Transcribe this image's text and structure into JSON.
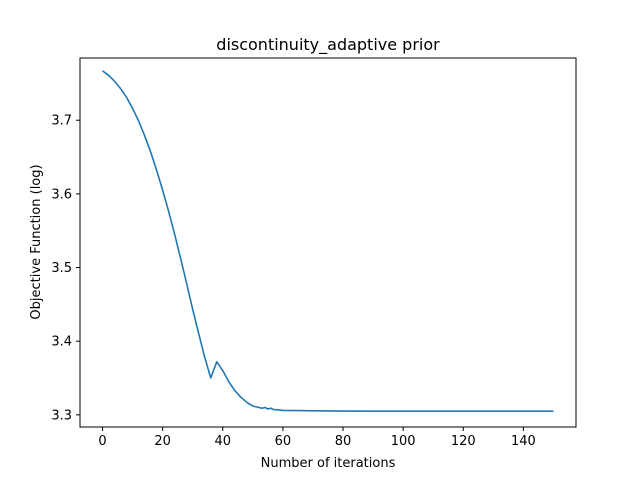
{
  "chart_data": {
    "type": "line",
    "title": "discontinuity_adaptive prior",
    "xlabel": "Number of iterations",
    "ylabel": "Objective Function (log)",
    "xlim": [
      -7.5,
      157.5
    ],
    "ylim": [
      3.2835,
      3.7845
    ],
    "x_ticks": [
      "0",
      "20",
      "40",
      "60",
      "80",
      "100",
      "120",
      "140"
    ],
    "y_ticks": [
      "3.3",
      "3.4",
      "3.5",
      "3.6",
      "3.7"
    ],
    "grid": false,
    "legend": "none",
    "series": [
      {
        "color": "#1f77b4",
        "x": [
          0,
          2,
          4,
          6,
          8,
          10,
          12,
          14,
          16,
          18,
          20,
          22,
          24,
          26,
          28,
          30,
          32,
          34,
          36,
          38,
          40,
          42,
          44,
          46,
          48,
          50,
          52,
          53,
          54,
          55,
          56,
          57,
          58,
          60,
          65,
          70,
          80,
          90,
          100,
          110,
          120,
          130,
          140,
          150
        ],
        "y": [
          3.767,
          3.761,
          3.753,
          3.743,
          3.731,
          3.716,
          3.699,
          3.679,
          3.657,
          3.632,
          3.605,
          3.576,
          3.545,
          3.512,
          3.478,
          3.443,
          3.41,
          3.378,
          3.35,
          3.372,
          3.36,
          3.345,
          3.333,
          3.324,
          3.317,
          3.312,
          3.31,
          3.309,
          3.31,
          3.308,
          3.309,
          3.307,
          3.307,
          3.306,
          3.3058,
          3.3055,
          3.3052,
          3.305,
          3.305,
          3.305,
          3.305,
          3.305,
          3.305,
          3.305
        ]
      }
    ]
  }
}
